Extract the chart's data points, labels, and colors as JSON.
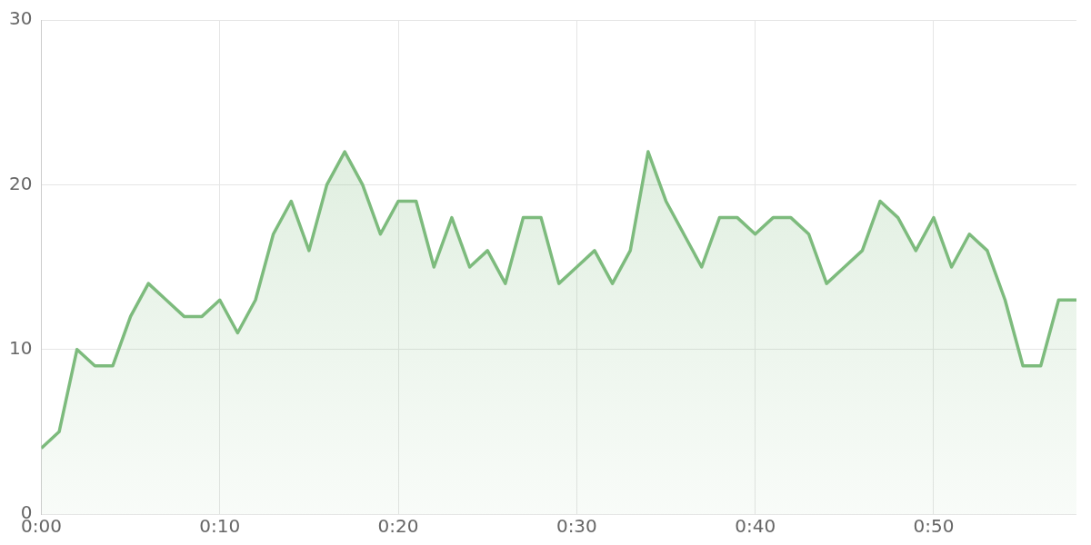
{
  "chart_data": {
    "type": "area",
    "x": [
      0,
      1,
      2,
      3,
      4,
      5,
      6,
      7,
      8,
      9,
      10,
      11,
      12,
      13,
      14,
      15,
      16,
      17,
      18,
      19,
      20,
      21,
      22,
      23,
      24,
      25,
      26,
      27,
      28,
      29,
      30,
      31,
      32,
      33,
      34,
      35,
      36,
      37,
      38,
      39,
      40,
      41,
      42,
      43,
      44,
      45,
      46,
      47,
      48,
      49,
      50,
      51,
      52,
      53,
      54,
      55,
      56,
      57,
      58
    ],
    "series": [
      {
        "color": "#7dbb7d",
        "values": [
          4,
          5,
          10,
          9,
          9,
          12,
          14,
          13,
          12,
          12,
          13,
          11,
          13,
          17,
          19,
          16,
          20,
          22,
          20,
          17,
          19,
          19,
          15,
          18,
          15,
          16,
          14,
          18,
          18,
          14,
          15,
          16,
          14,
          16,
          22,
          19,
          17,
          15,
          18,
          18,
          17,
          18,
          18,
          17,
          14,
          15,
          16,
          19,
          18,
          16,
          18,
          15,
          17,
          16,
          13,
          9,
          9,
          13,
          13
        ]
      }
    ],
    "xlim": [
      0,
      58
    ],
    "xticks": [
      {
        "value": 0,
        "label": "0:00"
      },
      {
        "value": 10,
        "label": "0:10"
      },
      {
        "value": 20,
        "label": "0:20"
      },
      {
        "value": 30,
        "label": "0:30"
      },
      {
        "value": 40,
        "label": "0:40"
      },
      {
        "value": 50,
        "label": "0:50"
      }
    ],
    "ylim": [
      0,
      30
    ],
    "yticks": [
      0,
      10,
      20,
      30
    ],
    "grid": true,
    "legend": false
  }
}
